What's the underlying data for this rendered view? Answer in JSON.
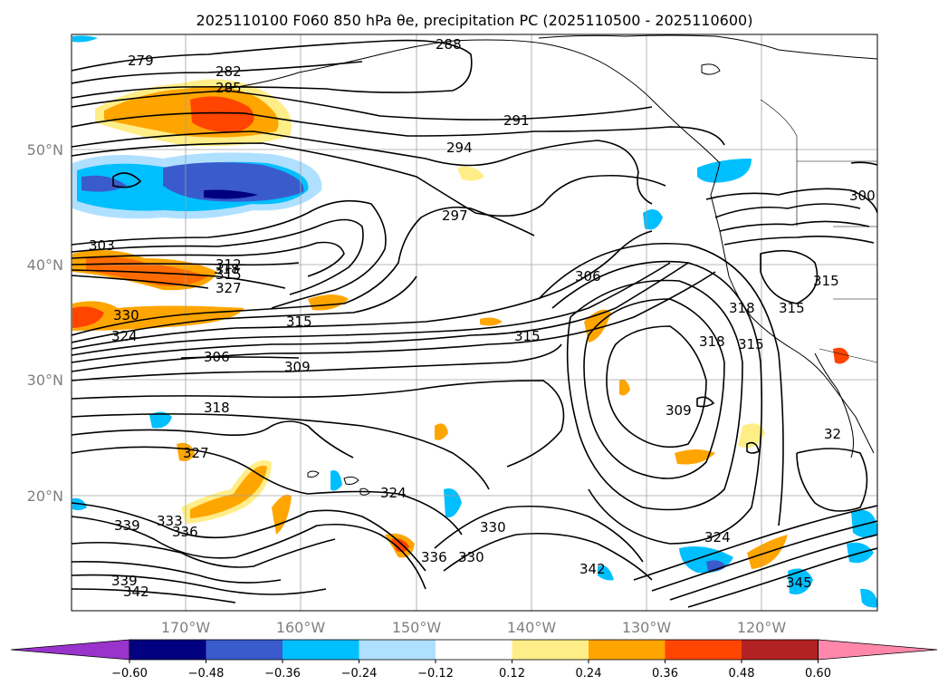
{
  "title": "2025110100 F060 850 hPa θe, precipitation PC (2025110500 - 2025110600)",
  "axes": {
    "lat_labels": [
      "50°N",
      "40°N",
      "30°N",
      "20°N"
    ],
    "lon_labels": [
      "170°W",
      "160°W",
      "150°W",
      "140°W",
      "130°W",
      "120°W"
    ]
  },
  "colorbar": {
    "colors": [
      "#9933cc",
      "#000080",
      "#3a5bcc",
      "#00bfff",
      "#b0e0ff",
      "#ffffff",
      "#ffee88",
      "#ffa500",
      "#ff4500",
      "#b22222",
      "#ff88aa"
    ],
    "ticks": [
      "−0.60",
      "−0.48",
      "−0.36",
      "−0.24",
      "−0.12",
      "0.12",
      "0.24",
      "0.36",
      "0.48",
      "0.60"
    ]
  },
  "contour_labels": [
    "279",
    "282",
    "285",
    "288",
    "291",
    "294",
    "297",
    "300",
    "303",
    "312",
    "315",
    "318",
    "327",
    "330",
    "324",
    "306",
    "309",
    "318",
    "327",
    "324",
    "330",
    "333",
    "339",
    "336",
    "330",
    "336",
    "342",
    "339",
    "342",
    "315",
    "306",
    "315",
    "318",
    "315",
    "315",
    "318",
    "315",
    "309",
    "324",
    "345",
    "32"
  ]
}
